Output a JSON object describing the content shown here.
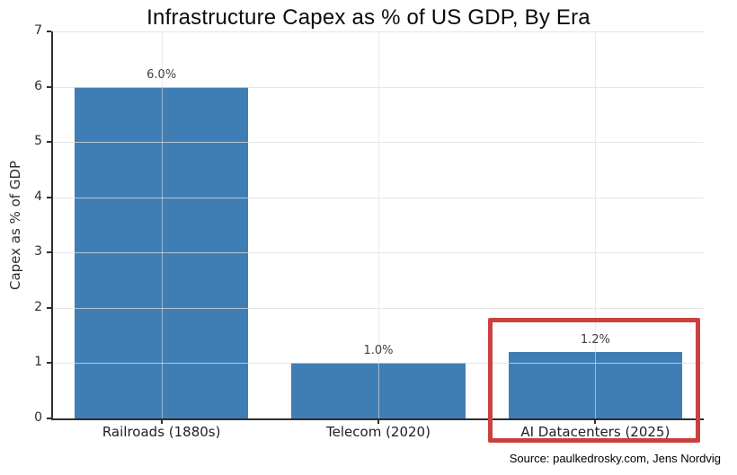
{
  "chart_data": {
    "type": "bar",
    "title": "Infrastructure Capex as % of US GDP, By Era",
    "ylabel": "Capex as % of GDP",
    "xlabel": "",
    "categories": [
      "Railroads (1880s)",
      "Telecom (2020)",
      "AI Datacenters (2025)"
    ],
    "values": [
      6.0,
      1.0,
      1.2
    ],
    "value_labels": [
      "6.0%",
      "1.0%",
      "1.2%"
    ],
    "ylim": [
      0,
      7
    ],
    "ytick_step": 1,
    "yticks": [
      "0",
      "1",
      "2",
      "3",
      "4",
      "5",
      "6",
      "7"
    ],
    "grid": true,
    "legend": "none",
    "bar_color": "#3f7eb5",
    "highlight": {
      "index": 2,
      "color": "#c9423f"
    }
  },
  "source": {
    "text": "Source: paulkedrosky.com, Jens Nordvig"
  }
}
